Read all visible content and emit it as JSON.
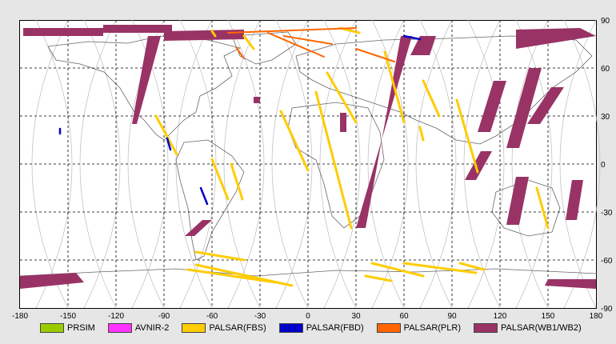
{
  "chart_data": {
    "type": "map",
    "x_ticks": [
      "-180",
      "-150",
      "-120",
      "-90",
      "-60",
      "-30",
      "0",
      "30",
      "60",
      "90",
      "120",
      "150",
      "180"
    ],
    "y_ticks": [
      "90",
      "60",
      "30",
      "0",
      "-30",
      "-60",
      "-90"
    ],
    "xlim": [
      -180,
      180
    ],
    "ylim": [
      -90,
      90
    ],
    "grid": "dashed",
    "legend_position": "bottom",
    "legend": [
      {
        "label": "PRSIM",
        "color": "#99cc00"
      },
      {
        "label": "AVNIR-2",
        "color": "#ff33ff"
      },
      {
        "label": "PALSAR(FBS)",
        "color": "#ffcc00"
      },
      {
        "label": "PALSAR(FBD)",
        "color": "#0000cc"
      },
      {
        "label": "PALSAR(PLR)",
        "color": "#ff6600"
      },
      {
        "label": "PALSAR(WB1/WB2)",
        "color": "#993366"
      }
    ],
    "wb_swaths": [
      {
        "lon": [
          -178,
          -128,
          -128,
          -178
        ],
        "lat": [
          85,
          85,
          80,
          80
        ]
      },
      {
        "lon": [
          -128,
          -85,
          -85,
          -128
        ],
        "lat": [
          87,
          87,
          82,
          82
        ]
      },
      {
        "lon": [
          -90,
          -40,
          -40,
          -90
        ],
        "lat": [
          83,
          84,
          78,
          77
        ]
      },
      {
        "lon": [
          -100,
          -92,
          -107,
          -110
        ],
        "lat": [
          80,
          80,
          25,
          25
        ]
      },
      {
        "lon": [
          65,
          58,
          36,
          30
        ],
        "lat": [
          80,
          80,
          -40,
          -40
        ]
      },
      {
        "lon": [
          80,
          70,
          64,
          76
        ],
        "lat": [
          80,
          80,
          68,
          68
        ]
      },
      {
        "lon": [
          130,
          170,
          180,
          130
        ],
        "lat": [
          84,
          85,
          80,
          72
        ]
      },
      {
        "lon": [
          138,
          146,
          132,
          124
        ],
        "lat": [
          60,
          60,
          10,
          10
        ]
      },
      {
        "lon": [
          116,
          124,
          114,
          106
        ],
        "lat": [
          52,
          52,
          20,
          20
        ]
      },
      {
        "lon": [
          152,
          160,
          145,
          137
        ],
        "lat": [
          48,
          48,
          25,
          25
        ]
      },
      {
        "lon": [
          108,
          115,
          105,
          98
        ],
        "lat": [
          8,
          8,
          -10,
          -10
        ]
      },
      {
        "lon": [
          130,
          138,
          132,
          124
        ],
        "lat": [
          -8,
          -8,
          -38,
          -38
        ]
      },
      {
        "lon": [
          165,
          172,
          168,
          161
        ],
        "lat": [
          -10,
          -10,
          -35,
          -35
        ]
      },
      {
        "lon": [
          -66,
          -60,
          -71,
          -77
        ],
        "lat": [
          -35,
          -35,
          -45,
          -45
        ]
      },
      {
        "lon": [
          -180,
          -145,
          -140,
          -180
        ],
        "lat": [
          -70,
          -68,
          -74,
          -78
        ]
      },
      {
        "lon": [
          150,
          180,
          180,
          148
        ],
        "lat": [
          -72,
          -72,
          -78,
          -76
        ]
      },
      {
        "lon": [
          20,
          24,
          24,
          20
        ],
        "lat": [
          32,
          32,
          20,
          20
        ]
      },
      {
        "lon": [
          -34,
          -30,
          -30,
          -34
        ],
        "lat": [
          42,
          42,
          38,
          38
        ]
      }
    ],
    "fbs_swaths": [
      {
        "lon": [
          -70,
          -40
        ],
        "lat": [
          -55,
          -60
        ]
      },
      {
        "lon": [
          -70,
          -10
        ],
        "lat": [
          -63,
          -76
        ]
      },
      {
        "lon": [
          -75,
          -20
        ],
        "lat": [
          -66,
          -74
        ]
      },
      {
        "lon": [
          40,
          72
        ],
        "lat": [
          -62,
          -70
        ]
      },
      {
        "lon": [
          60,
          105
        ],
        "lat": [
          -62,
          -68
        ]
      },
      {
        "lon": [
          36,
          52
        ],
        "lat": [
          -70,
          -73
        ]
      },
      {
        "lon": [
          95,
          110
        ],
        "lat": [
          -62,
          -66
        ]
      },
      {
        "lon": [
          -60,
          -50
        ],
        "lat": [
          3,
          -22
        ]
      },
      {
        "lon": [
          -48,
          -41
        ],
        "lat": [
          0,
          -22
        ]
      },
      {
        "lon": [
          -17,
          0
        ],
        "lat": [
          33,
          -4
        ]
      },
      {
        "lon": [
          5,
          27
        ],
        "lat": [
          45,
          -40
        ]
      },
      {
        "lon": [
          12,
          30
        ],
        "lat": [
          57,
          26
        ]
      },
      {
        "lon": [
          48,
          60
        ],
        "lat": [
          70,
          26
        ]
      },
      {
        "lon": [
          72,
          82
        ],
        "lat": [
          52,
          30
        ]
      },
      {
        "lon": [
          70,
          72
        ],
        "lat": [
          23,
          15
        ]
      },
      {
        "lon": [
          93,
          106
        ],
        "lat": [
          40,
          -5
        ]
      },
      {
        "lon": [
          143,
          150
        ],
        "lat": [
          -15,
          -40
        ]
      },
      {
        "lon": [
          -95,
          -82
        ],
        "lat": [
          30,
          6
        ]
      },
      {
        "lon": [
          -60,
          -58
        ],
        "lat": [
          83,
          80
        ]
      },
      {
        "lon": [
          -40,
          -34
        ],
        "lat": [
          80,
          72
        ]
      },
      {
        "lon": [
          20,
          32
        ],
        "lat": [
          85,
          82
        ]
      }
    ],
    "fbd_swaths": [
      {
        "lon": [
          -155,
          -155
        ],
        "lat": [
          22,
          19
        ]
      },
      {
        "lon": [
          -88,
          -86
        ],
        "lat": [
          16,
          9
        ]
      },
      {
        "lon": [
          -67,
          -63
        ],
        "lat": [
          -15,
          -25
        ]
      },
      {
        "lon": [
          60,
          70
        ],
        "lat": [
          80,
          78
        ]
      }
    ],
    "plr_swaths": [
      {
        "lon": [
          -50,
          30
        ],
        "lat": [
          82,
          85
        ]
      },
      {
        "lon": [
          -25,
          10
        ],
        "lat": [
          82,
          67
        ]
      },
      {
        "lon": [
          -15,
          15
        ],
        "lat": [
          80,
          75
        ]
      },
      {
        "lon": [
          -45,
          -40
        ],
        "lat": [
          73,
          66
        ]
      },
      {
        "lon": [
          30,
          54
        ],
        "lat": [
          72,
          64
        ]
      }
    ]
  }
}
